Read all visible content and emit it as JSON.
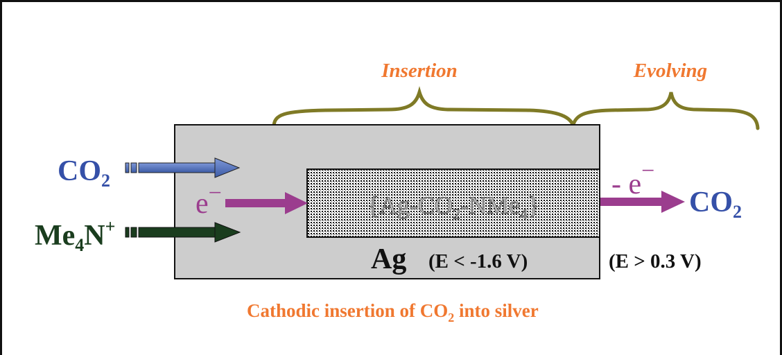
{
  "labels": {
    "insertion": "Insertion",
    "evolving": "Evolving",
    "co2_in_main": "CO",
    "co2_in_sub": "2",
    "me4n_main": "Me",
    "me4n_sub": "4",
    "me4n_tail": "N",
    "me4n_sup": "+",
    "electron_in": "e",
    "electron_in_sup": "−",
    "complex_a": "{Ag-CO",
    "complex_sub1": "2",
    "complex_b": "-NMe",
    "complex_sub2": "4",
    "complex_c": "}",
    "electron_out": "- e",
    "electron_out_sup": "−",
    "co2_out_main": "CO",
    "co2_out_sub": "2",
    "ag": "Ag",
    "potential_insert": "(E < -1.6 V)",
    "potential_evolve": "(E > 0.3 V)",
    "caption_a": "Cathodic insertion of CO",
    "caption_sub": "2",
    "caption_b": " into silver"
  },
  "colors": {
    "label_orange": "#f07830",
    "brace_olive": "#7f7a26",
    "co2_blue": "#4f6fb8",
    "co2_blue_text": "#3550a8",
    "me4n_green": "#1a3d1e",
    "electron_magenta": "#9b3d8e",
    "electrode_gray": "#cdcdcd"
  }
}
